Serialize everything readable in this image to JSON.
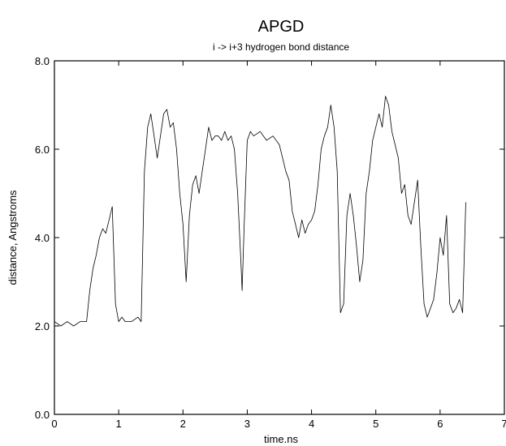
{
  "chart_data": {
    "type": "line",
    "title": "APGD",
    "subtitle": "i -> i+3 hydrogen bond distance",
    "xlabel": "time.ns",
    "ylabel": "distance, Angstroms",
    "xlim": [
      0,
      7
    ],
    "ylim": [
      0.0,
      8.0
    ],
    "x_ticks": [
      0,
      1,
      2,
      3,
      4,
      5,
      6,
      7
    ],
    "x_tick_labels": [
      "0",
      "1",
      "2",
      "3",
      "4",
      "5",
      "6",
      "7"
    ],
    "y_ticks": [
      0.0,
      2.0,
      4.0,
      6.0,
      8.0
    ],
    "y_tick_labels": [
      "0.0",
      "2.0",
      "4.0",
      "6.0",
      "8.0"
    ],
    "grid": false,
    "legend": "none",
    "series": [
      {
        "x": [
          0.0,
          0.1,
          0.2,
          0.3,
          0.4,
          0.5,
          0.55,
          0.6,
          0.65,
          0.7,
          0.75,
          0.8,
          0.85,
          0.9,
          0.95,
          1.0,
          1.05,
          1.1,
          1.2,
          1.3,
          1.35,
          1.4,
          1.45,
          1.5,
          1.55,
          1.6,
          1.7,
          1.75,
          1.8,
          1.85,
          1.9,
          1.95,
          2.0,
          2.05,
          2.1,
          2.15,
          2.2,
          2.25,
          2.3,
          2.35,
          2.4,
          2.45,
          2.5,
          2.55,
          2.6,
          2.65,
          2.7,
          2.75,
          2.8,
          2.85,
          2.9,
          2.92,
          2.95,
          3.0,
          3.05,
          3.1,
          3.2,
          3.3,
          3.4,
          3.5,
          3.6,
          3.65,
          3.7,
          3.75,
          3.8,
          3.85,
          3.9,
          3.95,
          4.0,
          4.05,
          4.1,
          4.15,
          4.2,
          4.25,
          4.3,
          4.35,
          4.4,
          4.45,
          4.5,
          4.55,
          4.6,
          4.65,
          4.7,
          4.75,
          4.8,
          4.85,
          4.9,
          4.95,
          5.0,
          5.05,
          5.1,
          5.15,
          5.2,
          5.25,
          5.3,
          5.35,
          5.4,
          5.45,
          5.5,
          5.55,
          5.6,
          5.65,
          5.7,
          5.75,
          5.8,
          5.85,
          5.9,
          5.95,
          6.0,
          6.05,
          6.1,
          6.15,
          6.2,
          6.25,
          6.3,
          6.35,
          6.4
        ],
        "values": [
          2.1,
          2.0,
          2.1,
          2.0,
          2.1,
          2.1,
          2.8,
          3.3,
          3.6,
          4.0,
          4.2,
          4.1,
          4.4,
          4.7,
          2.5,
          2.1,
          2.2,
          2.1,
          2.1,
          2.2,
          2.1,
          5.5,
          6.5,
          6.8,
          6.3,
          5.8,
          6.8,
          6.9,
          6.5,
          6.6,
          6.0,
          5.0,
          4.3,
          3.0,
          4.5,
          5.2,
          5.4,
          5.0,
          5.5,
          6.0,
          6.5,
          6.2,
          6.3,
          6.3,
          6.2,
          6.4,
          6.2,
          6.3,
          6.0,
          5.0,
          3.5,
          2.8,
          4.2,
          6.2,
          6.4,
          6.3,
          6.4,
          6.2,
          6.3,
          6.1,
          5.5,
          5.3,
          4.6,
          4.3,
          4.0,
          4.4,
          4.1,
          4.3,
          4.4,
          4.6,
          5.2,
          6.0,
          6.3,
          6.5,
          7.0,
          6.5,
          5.5,
          2.3,
          2.5,
          4.5,
          5.0,
          4.5,
          3.8,
          3.0,
          3.5,
          5.0,
          5.5,
          6.2,
          6.5,
          6.8,
          6.5,
          7.2,
          7.0,
          6.4,
          6.1,
          5.8,
          5.0,
          5.2,
          4.5,
          4.3,
          4.8,
          5.3,
          3.8,
          2.5,
          2.2,
          2.4,
          2.6,
          3.2,
          4.0,
          3.6,
          4.5,
          2.5,
          2.3,
          2.4,
          2.6,
          2.3,
          4.8
        ]
      }
    ]
  }
}
